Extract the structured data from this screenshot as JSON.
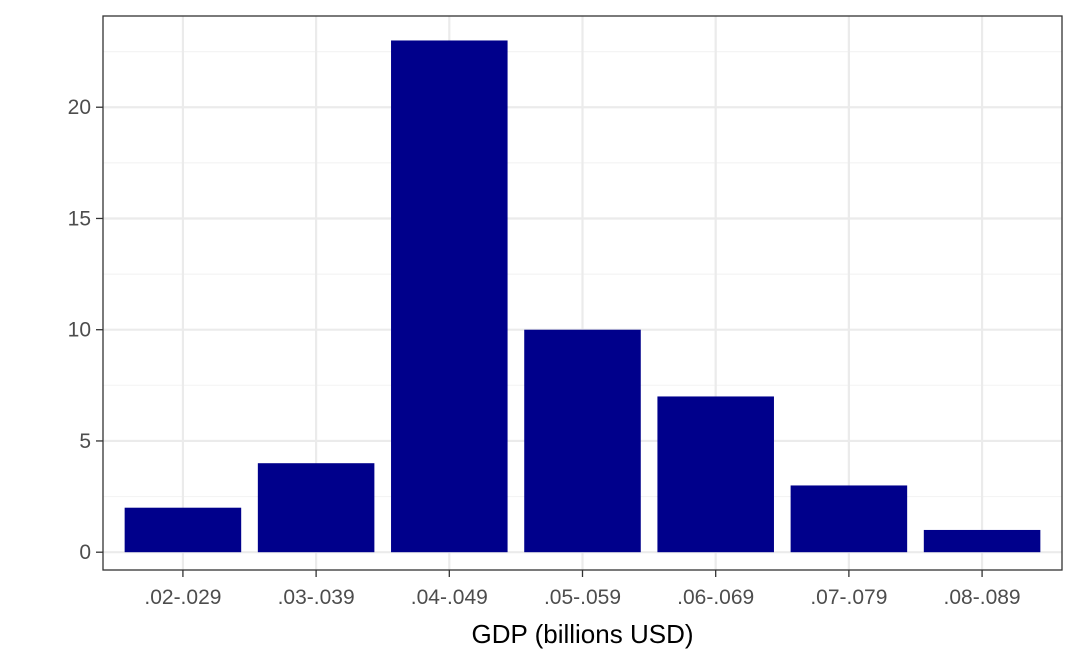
{
  "chart_data": {
    "type": "bar",
    "categories": [
      ".02-.029",
      ".03-.039",
      ".04-.049",
      ".05-.059",
      ".06-.069",
      ".07-.079",
      ".08-.089"
    ],
    "values": [
      2,
      4,
      23,
      10,
      7,
      3,
      1
    ],
    "title": "",
    "xlabel": "GDP (billions USD)",
    "ylabel": "",
    "ylim": [
      -0.8,
      24.1
    ],
    "yticks": [
      0,
      5,
      10,
      15,
      20
    ],
    "ytick_labels": [
      "0",
      "5",
      "10",
      "15",
      "20"
    ],
    "grid": true,
    "minor_grid": true,
    "legend": "none",
    "colors": {
      "bar": "#00008b",
      "panel_border": "#333333",
      "grid_major": "#ebebeb",
      "grid_minor": "#f4f4f4",
      "tick_text": "#4d4d4d",
      "axis_title": "#000000",
      "background": "#ffffff"
    }
  }
}
